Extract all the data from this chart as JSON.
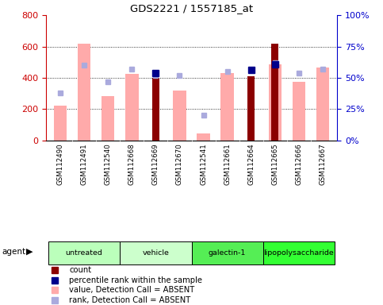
{
  "title": "GDS2221 / 1557185_at",
  "samples": [
    "GSM112490",
    "GSM112491",
    "GSM112540",
    "GSM112668",
    "GSM112669",
    "GSM112670",
    "GSM112541",
    "GSM112661",
    "GSM112664",
    "GSM112665",
    "GSM112666",
    "GSM112667"
  ],
  "groups": [
    {
      "label": "untreated",
      "indices": [
        0,
        1,
        2
      ],
      "color": "#bbffbb"
    },
    {
      "label": "vehicle",
      "indices": [
        3,
        4,
        5
      ],
      "color": "#ccffcc"
    },
    {
      "label": "galectin-1",
      "indices": [
        6,
        7,
        8
      ],
      "color": "#55ee55"
    },
    {
      "label": "lipopolysaccharide",
      "indices": [
        9,
        10,
        11
      ],
      "color": "#33ff33"
    }
  ],
  "count_values": [
    null,
    null,
    null,
    null,
    400,
    null,
    null,
    null,
    410,
    620,
    null,
    null
  ],
  "percentile_rank_pct": [
    null,
    null,
    null,
    null,
    54,
    null,
    null,
    null,
    56,
    61,
    null,
    null
  ],
  "value_absent": [
    220,
    620,
    285,
    425,
    null,
    320,
    45,
    430,
    null,
    485,
    375,
    465
  ],
  "rank_absent_pct": [
    38,
    60,
    47,
    57,
    52,
    52,
    20,
    55,
    56,
    62,
    54,
    57
  ],
  "ylim_left": [
    0,
    800
  ],
  "ylim_right": [
    0,
    100
  ],
  "yticks_left": [
    0,
    200,
    400,
    600,
    800
  ],
  "yticks_right": [
    0,
    25,
    50,
    75,
    100
  ],
  "ytick_labels_right": [
    "0%",
    "25%",
    "50%",
    "75%",
    "100%"
  ],
  "bar_color_count": "#8b0000",
  "bar_color_value_absent": "#ffaaaa",
  "marker_color_rank": "#00008b",
  "marker_color_rank_absent": "#aaaadd",
  "axis_left_color": "#cc0000",
  "axis_right_color": "#0000cc",
  "bg_color": "#ffffff"
}
